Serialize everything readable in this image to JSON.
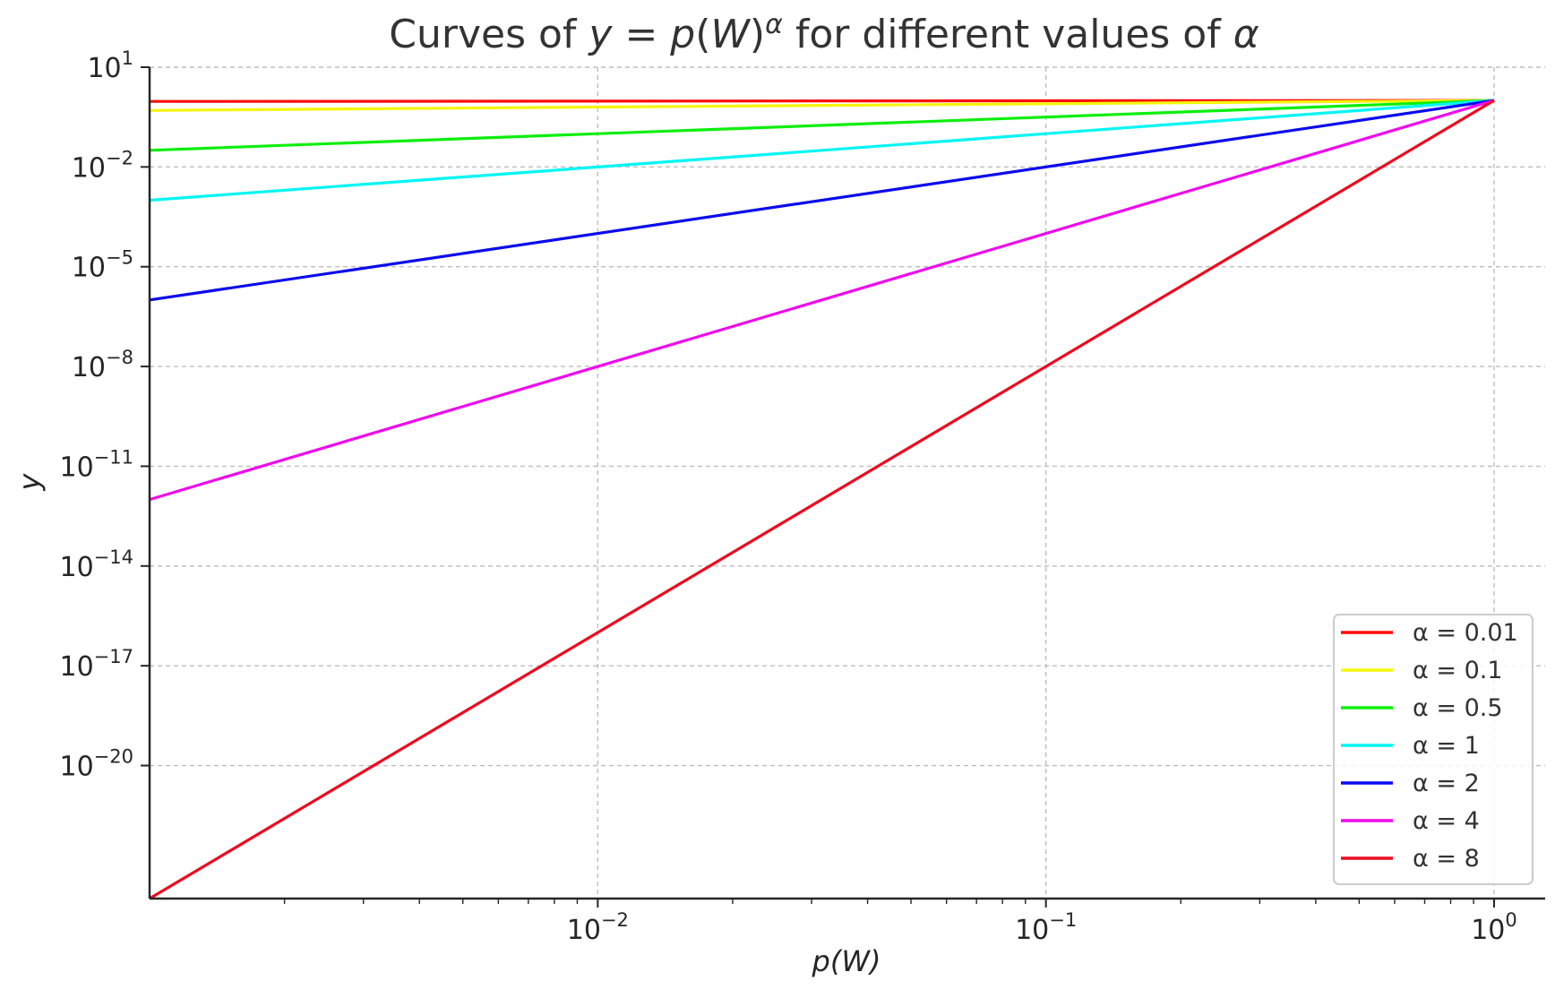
{
  "chart_data": {
    "type": "line",
    "title": "Curves of y = p(W)^α for different values of α",
    "xlabel": "p(W)",
    "ylabel": "y",
    "xscale": "log",
    "yscale": "log",
    "xlim": [
      0.001,
      1.3
    ],
    "ylim": [
      1e-24,
      10
    ],
    "grid": true,
    "legend_position": "bottom-right",
    "x_ticks": [
      {
        "value": 0.01,
        "base": "10",
        "exp": "−2"
      },
      {
        "value": 0.1,
        "base": "10",
        "exp": "−1"
      },
      {
        "value": 1,
        "base": "10",
        "exp": "0"
      }
    ],
    "y_ticks": [
      {
        "value": 10,
        "base": "10",
        "exp": "1"
      },
      {
        "value": 0.01,
        "base": "10",
        "exp": "−2"
      },
      {
        "value": 1e-05,
        "base": "10",
        "exp": "−5"
      },
      {
        "value": 1e-08,
        "base": "10",
        "exp": "−8"
      },
      {
        "value": 1e-11,
        "base": "10",
        "exp": "−11"
      },
      {
        "value": 1e-14,
        "base": "10",
        "exp": "−14"
      },
      {
        "value": 1e-17,
        "base": "10",
        "exp": "−17"
      },
      {
        "value": 1e-20,
        "base": "10",
        "exp": "−20"
      }
    ],
    "x": [
      0.001,
      0.0014,
      1
    ],
    "series": [
      {
        "name": "α = 0.01",
        "alpha": 0.01,
        "color": "#ff0a0a",
        "values": [
          0.933,
          0.936,
          1
        ]
      },
      {
        "name": "α = 0.1",
        "alpha": 0.1,
        "color": "#f5f50a",
        "values": [
          0.501,
          0.518,
          1
        ]
      },
      {
        "name": "α = 0.5",
        "alpha": 0.5,
        "color": "#0aef0a",
        "values": [
          0.0316,
          0.0374,
          1
        ]
      },
      {
        "name": "α = 1",
        "alpha": 1,
        "color": "#00f5f5",
        "values": [
          0.001,
          0.0014,
          1
        ]
      },
      {
        "name": "α = 2",
        "alpha": 2,
        "color": "#0a0aef",
        "values": [
          1e-06,
          1.96e-06,
          1
        ]
      },
      {
        "name": "α = 4",
        "alpha": 4,
        "color": "#ef0aef",
        "values": [
          1e-12,
          3.84e-12,
          1
        ]
      },
      {
        "name": "α = 8",
        "alpha": 8,
        "color": "#ef0a1e",
        "values": [
          1e-24,
          1.48e-23,
          1
        ]
      }
    ]
  }
}
